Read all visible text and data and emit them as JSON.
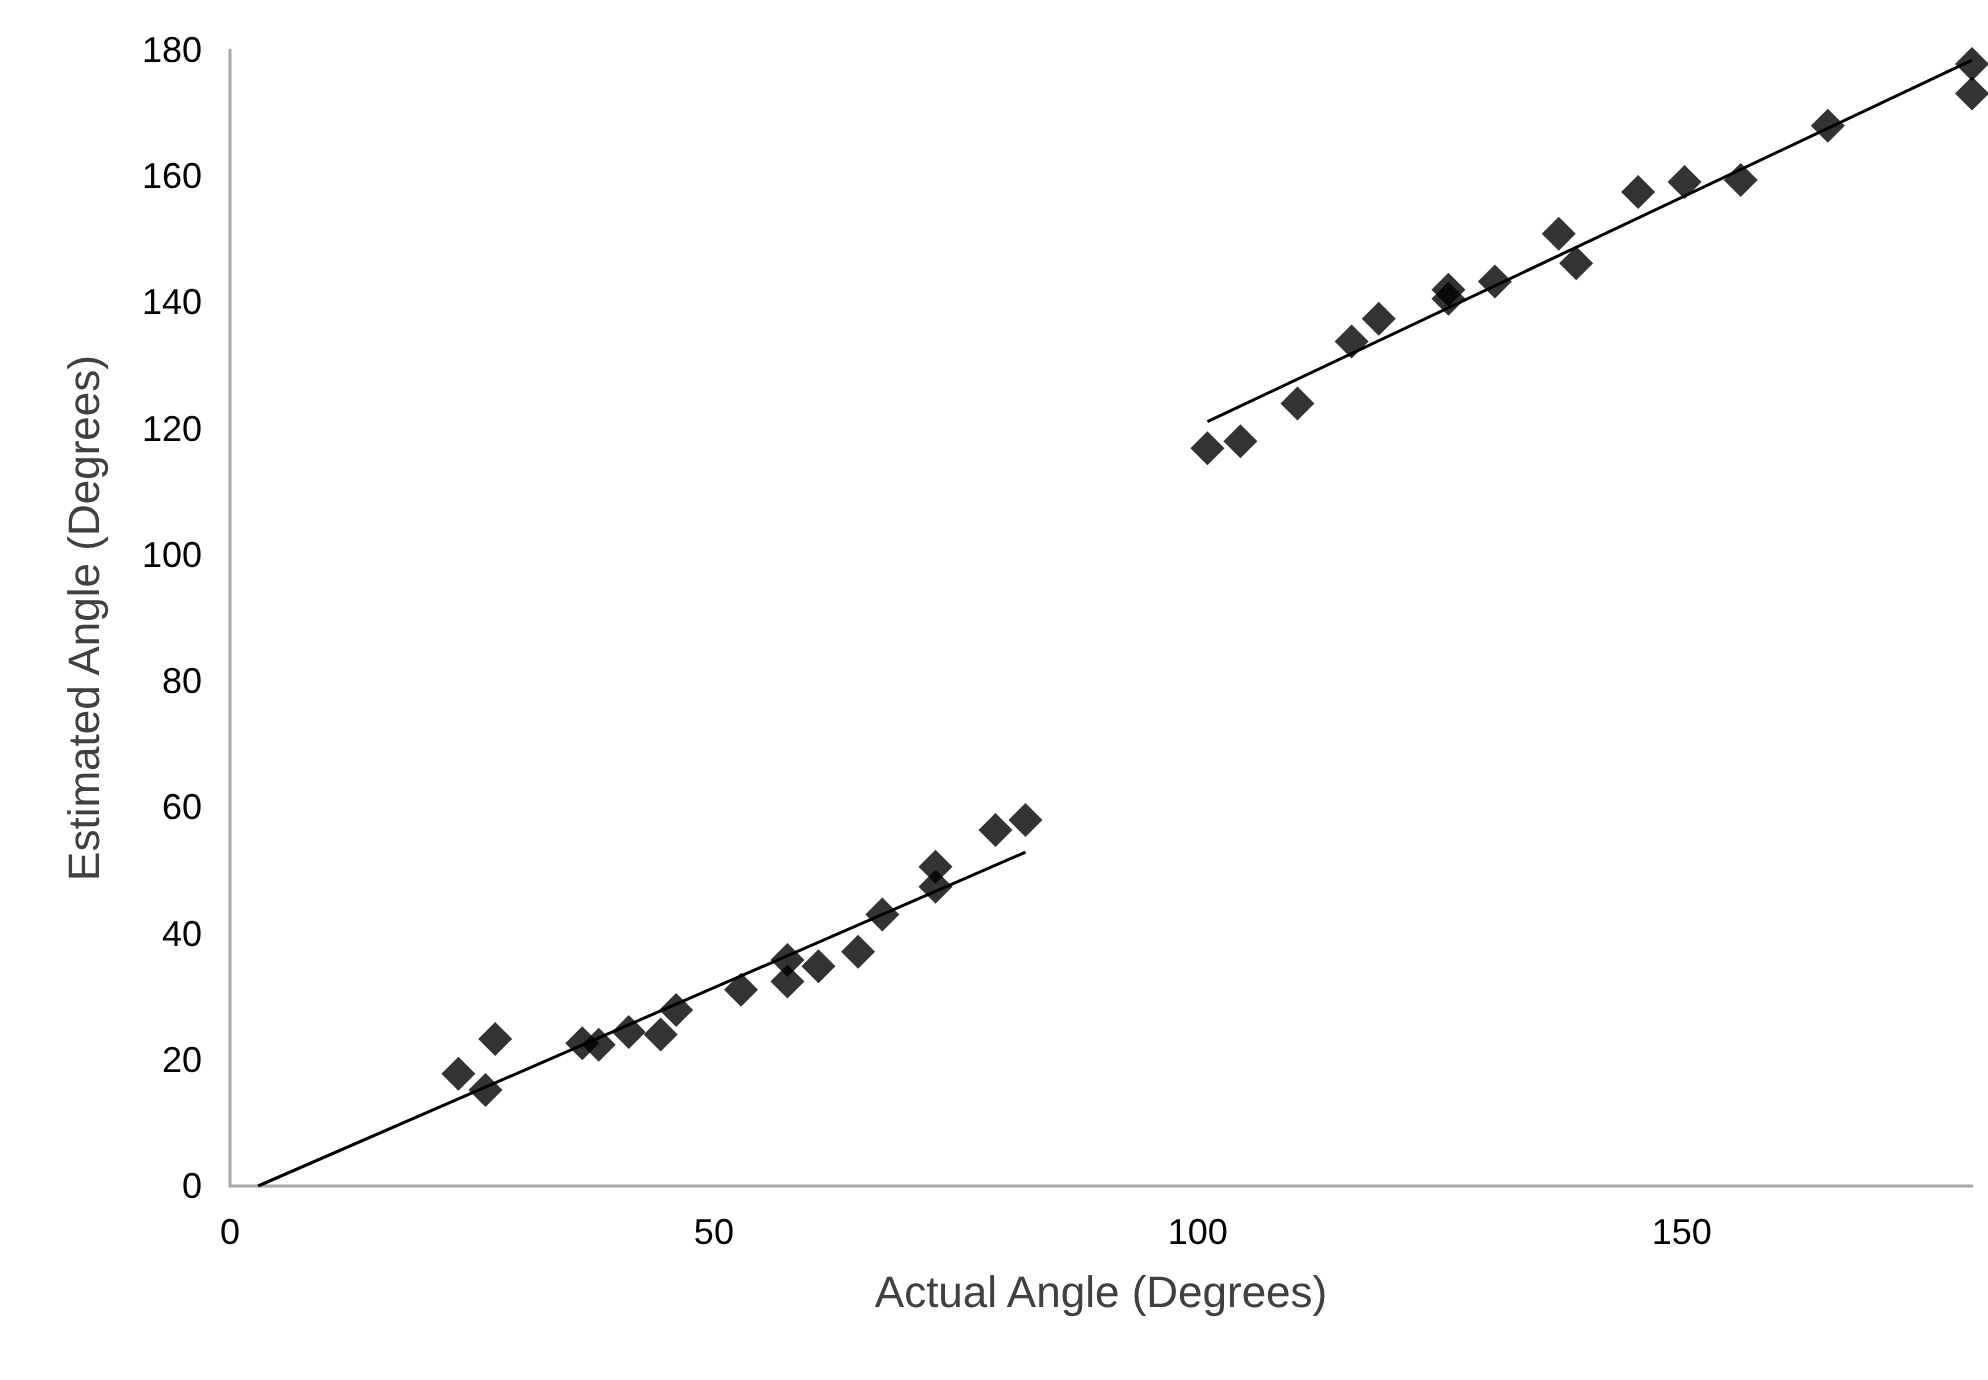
{
  "chart_data": {
    "type": "scatter",
    "xlabel": "Actual Angle (Degrees)",
    "ylabel": "Estimated Angle (Degrees)",
    "xlim": [
      0,
      180
    ],
    "xticks": [
      0,
      50,
      100,
      150
    ],
    "ylim": [
      0,
      180
    ],
    "yticks": [
      0,
      20,
      40,
      60,
      80,
      100,
      120,
      140,
      160,
      180
    ],
    "grid": false,
    "marker": "diamond",
    "series": [
      {
        "color": "#000000",
        "x": [
          23.6,
          26.4,
          27.4,
          36.4,
          38.1,
          41.2,
          44.5,
          46.1,
          52.8,
          57.6,
          57.6,
          60.8,
          64.9,
          67.4,
          72.9,
          72.9,
          79.1,
          82.2,
          101,
          104.4,
          110.3,
          115.9,
          118.7,
          125.9,
          125.9,
          130.7,
          137.3,
          139.1,
          145.5,
          150.3,
          156.1,
          165.1,
          180,
          180
        ],
        "values": [
          17.8,
          15.2,
          23.3,
          22.6,
          22.4,
          24.4,
          24.0,
          27.9,
          31.1,
          35.8,
          32.4,
          34.8,
          37.1,
          43.0,
          50.6,
          47.4,
          56.4,
          58.0,
          116.9,
          118.0,
          124.0,
          133.8,
          137.4,
          142.0,
          140.6,
          143.3,
          150.9,
          146.2,
          157.5,
          159.1,
          159.4,
          168.0,
          177.8,
          173.1
        ]
      },
      {
        "type": "line",
        "color": "#000000",
        "marker": "none",
        "line_style": "solid",
        "x": [
          2.9,
          82.2
        ],
        "values": [
          0,
          52.9
        ]
      },
      {
        "type": "line",
        "color": "#000000",
        "marker": "none",
        "line_style": "solid",
        "x": [
          101,
          180
        ],
        "values": [
          121.1,
          178.4
        ]
      }
    ]
  }
}
